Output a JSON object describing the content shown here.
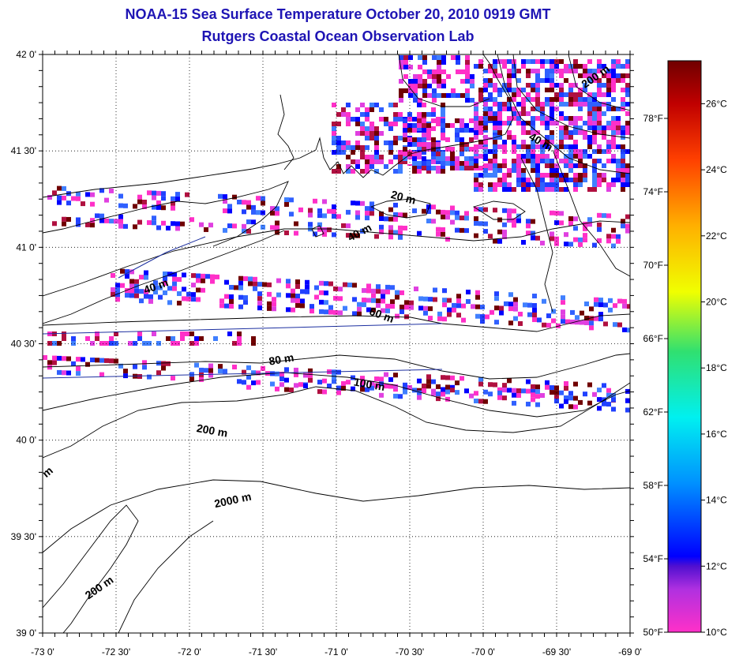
{
  "title": "NOAA-15 Sea Surface Temperature October 20, 2010 0919 GMT",
  "subtitle": "Rutgers Coastal Ocean Observation Lab",
  "map": {
    "lon_range": [
      -73,
      -69
    ],
    "lat_range": [
      39,
      42
    ],
    "lon_ticks": [
      {
        "value": -73.0,
        "label": "-73 0'"
      },
      {
        "value": -72.5,
        "label": "-72 30'"
      },
      {
        "value": -72.0,
        "label": "-72 0'"
      },
      {
        "value": -71.5,
        "label": "-71 30'"
      },
      {
        "value": -71.0,
        "label": "-71 0'"
      },
      {
        "value": -70.5,
        "label": "-70 30'"
      },
      {
        "value": -70.0,
        "label": "-70 0'"
      },
      {
        "value": -69.5,
        "label": "-69 30'"
      },
      {
        "value": -69.0,
        "label": "-69 0'"
      }
    ],
    "lat_ticks": [
      {
        "value": 42.0,
        "label": "42 0'"
      },
      {
        "value": 41.5,
        "label": "41 30'"
      },
      {
        "value": 41.0,
        "label": "41 0'"
      },
      {
        "value": 40.5,
        "label": "40 30'"
      },
      {
        "value": 40.0,
        "label": "40 0'"
      },
      {
        "value": 39.5,
        "label": "39 30'"
      },
      {
        "value": 39.0,
        "label": "39 0'"
      }
    ],
    "grid": "dotted",
    "contour_labels": [
      {
        "text": "200 m",
        "lon": -69.22,
        "lat": 41.87,
        "rotate": -35
      },
      {
        "text": "40 m",
        "lon": -69.62,
        "lat": 41.53,
        "rotate": 30
      },
      {
        "text": "20 m",
        "lon": -70.55,
        "lat": 41.24,
        "rotate": 15
      },
      {
        "text": "40 m",
        "lon": -70.83,
        "lat": 41.06,
        "rotate": -28
      },
      {
        "text": "40 m",
        "lon": -72.22,
        "lat": 40.78,
        "rotate": -20
      },
      {
        "text": "60 m",
        "lon": -70.7,
        "lat": 40.63,
        "rotate": 20
      },
      {
        "text": "80 m",
        "lon": -71.37,
        "lat": 40.4,
        "rotate": -10
      },
      {
        "text": "100 m",
        "lon": -70.78,
        "lat": 40.27,
        "rotate": 10
      },
      {
        "text": "200 m",
        "lon": -71.85,
        "lat": 40.03,
        "rotate": 10
      },
      {
        "text": "2000 m",
        "lon": -71.7,
        "lat": 39.67,
        "rotate": -12
      },
      {
        "text": "200 m",
        "lon": -72.6,
        "lat": 39.22,
        "rotate": -35
      },
      {
        "text": "m",
        "lon": -72.95,
        "lat": 39.82,
        "rotate": -40
      }
    ]
  },
  "colorbar": {
    "celsius_range": [
      10,
      27.3
    ],
    "celsius_ticks": [
      {
        "value": 26,
        "label": "26°C"
      },
      {
        "value": 24,
        "label": "24°C"
      },
      {
        "value": 22,
        "label": "22°C"
      },
      {
        "value": 20,
        "label": "20°C"
      },
      {
        "value": 18,
        "label": "18°C"
      },
      {
        "value": 16,
        "label": "16°C"
      },
      {
        "value": 14,
        "label": "14°C"
      },
      {
        "value": 12,
        "label": "12°C"
      },
      {
        "value": 10,
        "label": "10°C"
      }
    ],
    "fahrenheit_ticks": [
      {
        "value": 78,
        "label": "78°F"
      },
      {
        "value": 74,
        "label": "74°F"
      },
      {
        "value": 70,
        "label": "70°F"
      },
      {
        "value": 66,
        "label": "66°F"
      },
      {
        "value": 62,
        "label": "62°F"
      },
      {
        "value": 58,
        "label": "58°F"
      },
      {
        "value": 54,
        "label": "54°F"
      },
      {
        "value": 50,
        "label": "50°F"
      }
    ],
    "gradient": [
      {
        "value": 10.0,
        "color": "#ff30c8"
      },
      {
        "value": 11.3,
        "color": "#b030e0"
      },
      {
        "value": 12.0,
        "color": "#5010d0"
      },
      {
        "value": 12.3,
        "color": "#0000ff"
      },
      {
        "value": 14.5,
        "color": "#0090ff"
      },
      {
        "value": 16.5,
        "color": "#00f0f0"
      },
      {
        "value": 18.5,
        "color": "#30e070"
      },
      {
        "value": 20.3,
        "color": "#f0ff00"
      },
      {
        "value": 22.3,
        "color": "#ffb000"
      },
      {
        "value": 24.3,
        "color": "#ff4000"
      },
      {
        "value": 26.0,
        "color": "#c00000"
      },
      {
        "value": 27.3,
        "color": "#700000"
      }
    ]
  }
}
